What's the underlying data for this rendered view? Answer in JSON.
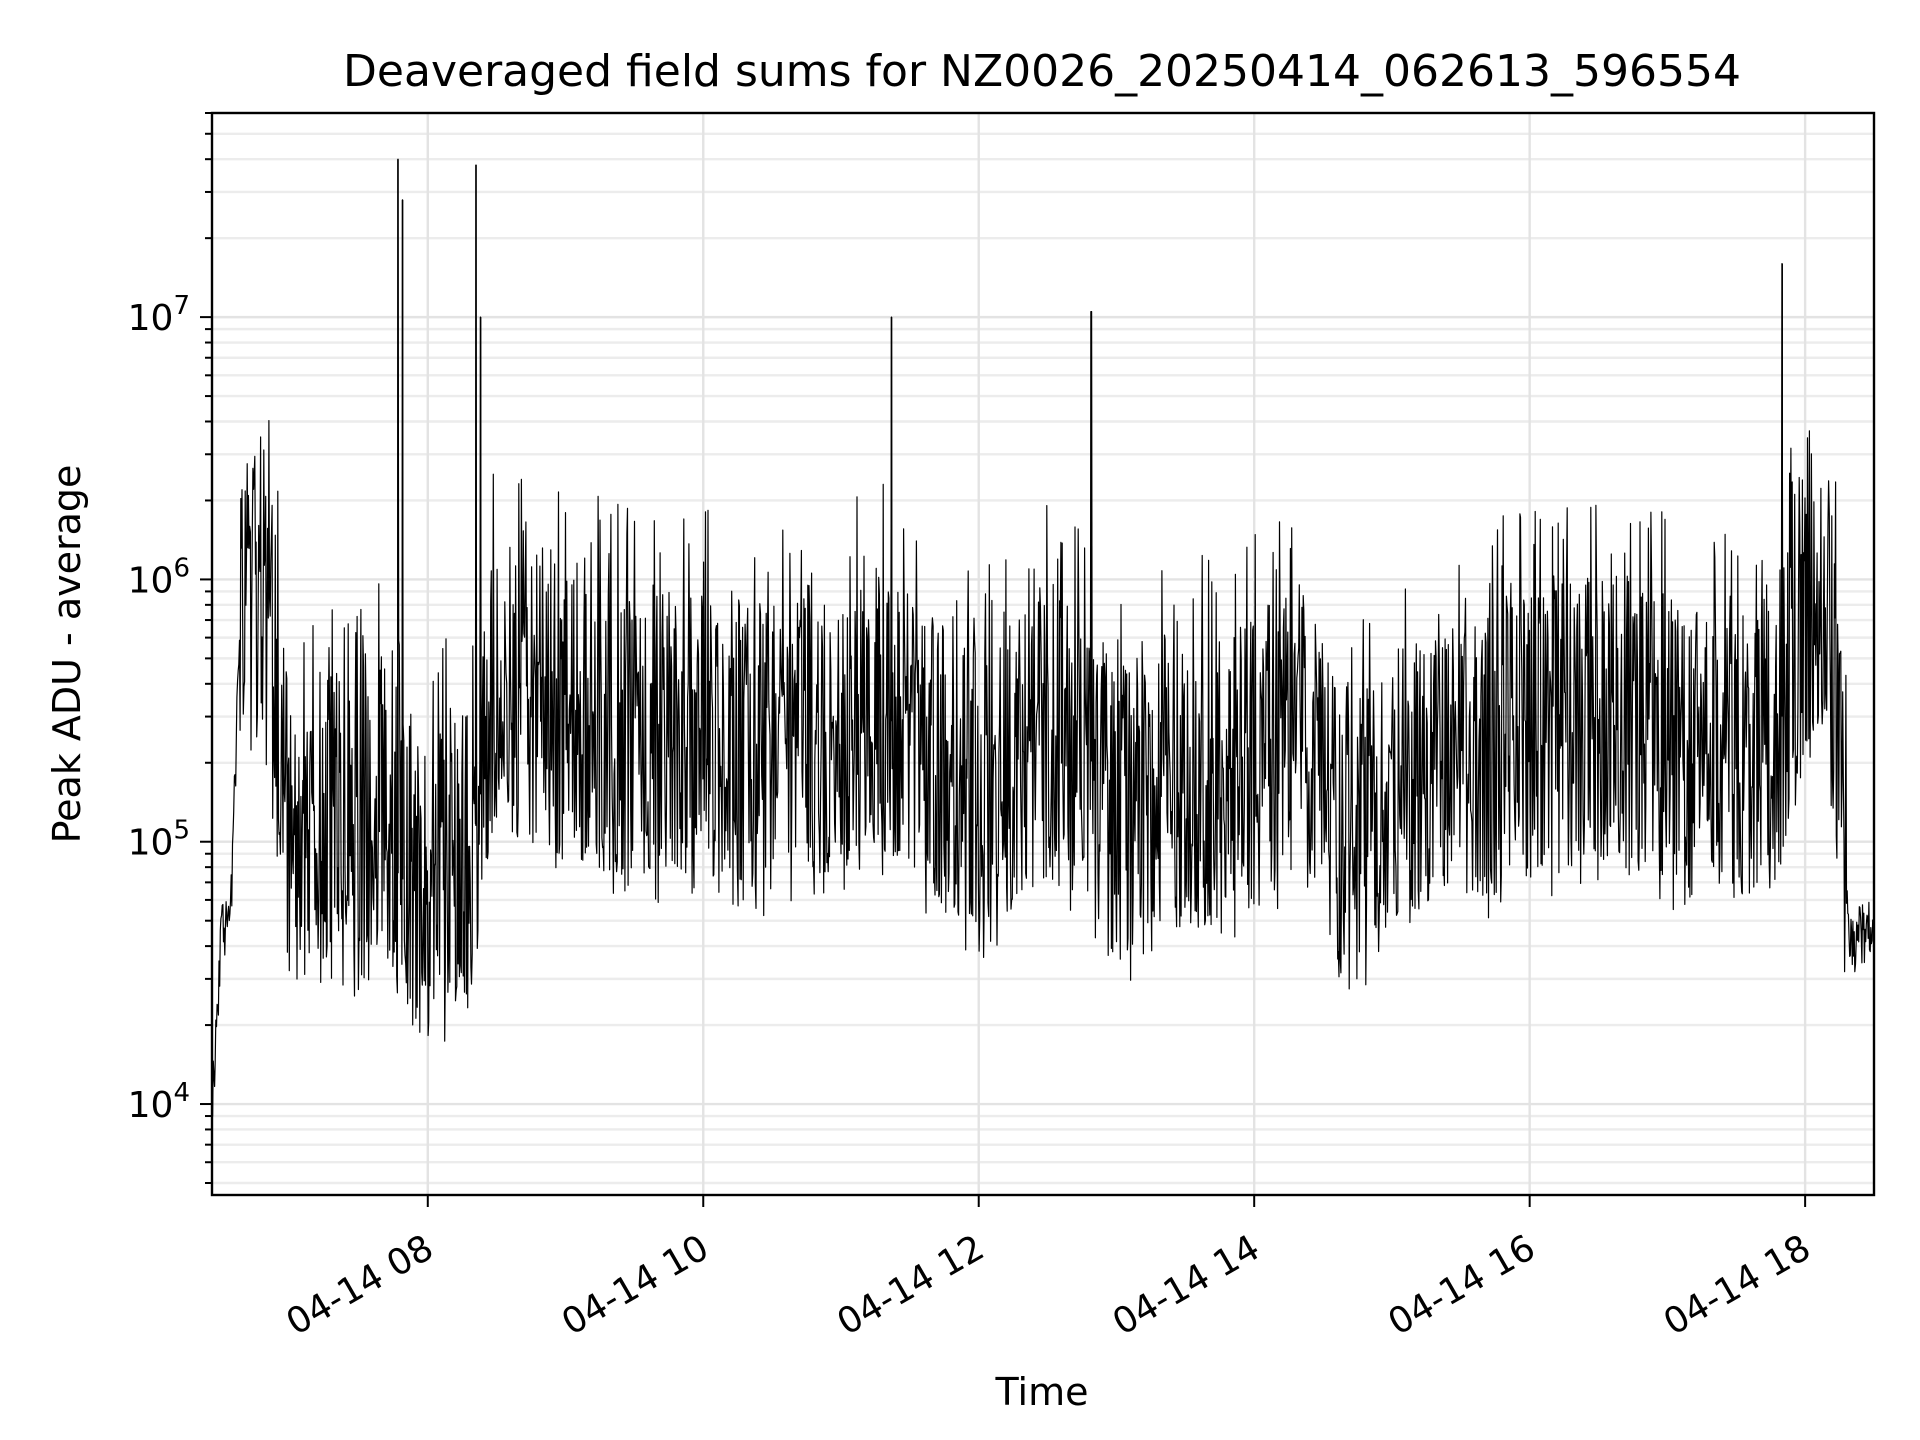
{
  "chart_data": {
    "type": "line",
    "title": "Deaveraged field sums for NZ0026_20250414_062613_596554",
    "xlabel": "Time",
    "ylabel": "Peak ADU - average",
    "y_scale": "log",
    "xlim": [
      "2025-04-14T06:26",
      "2025-04-14T18:30"
    ],
    "ylim": [
      4500,
      60000000
    ],
    "x_tick_labels": [
      "04-14 08",
      "04-14 10",
      "04-14 12",
      "04-14 14",
      "04-14 16",
      "04-14 18"
    ],
    "x_ticks": [
      "2025-04-14T08:00",
      "2025-04-14T10:00",
      "2025-04-14T12:00",
      "2025-04-14T14:00",
      "2025-04-14T16:00",
      "2025-04-14T18:00"
    ],
    "y_ticks": [
      10000,
      100000,
      1000000,
      10000000
    ],
    "y_tick_labels": [
      {
        "base": "10",
        "exp": "4"
      },
      {
        "base": "10",
        "exp": "5"
      },
      {
        "base": "10",
        "exp": "6"
      },
      {
        "base": "10",
        "exp": "7"
      }
    ],
    "grid": "both",
    "line_color": "#000000",
    "series": [
      {
        "x": [
          "2025-04-14T06:26",
          "2025-04-14T06:30",
          "2025-04-14T06:34",
          "2025-04-14T06:38",
          "2025-04-14T06:42",
          "2025-04-14T06:46",
          "2025-04-14T06:50",
          "2025-04-14T06:55",
          "2025-04-14T07:00",
          "2025-04-14T07:05",
          "2025-04-14T07:10",
          "2025-04-14T07:20",
          "2025-04-14T07:30",
          "2025-04-14T07:40",
          "2025-04-14T07:45",
          "2025-04-14T07:50",
          "2025-04-14T08:00",
          "2025-04-14T08:10",
          "2025-04-14T08:20",
          "2025-04-14T08:30",
          "2025-04-14T08:45",
          "2025-04-14T09:00",
          "2025-04-14T09:30",
          "2025-04-14T10:00",
          "2025-04-14T10:30",
          "2025-04-14T11:00",
          "2025-04-14T11:20",
          "2025-04-14T11:40",
          "2025-04-14T12:00",
          "2025-04-14T12:30",
          "2025-04-14T12:50",
          "2025-04-14T13:00",
          "2025-04-14T13:30",
          "2025-04-14T14:00",
          "2025-04-14T14:20",
          "2025-04-14T14:40",
          "2025-04-14T15:00",
          "2025-04-14T15:30",
          "2025-04-14T16:00",
          "2025-04-14T16:30",
          "2025-04-14T17:00",
          "2025-04-14T17:30",
          "2025-04-14T17:50",
          "2025-04-14T18:00",
          "2025-04-14T18:10",
          "2025-04-14T18:20",
          "2025-04-14T18:30"
        ],
        "y": [
          10000,
          45000,
          50000,
          600000,
          1000000,
          800000,
          600000,
          300000,
          100000,
          90000,
          100000,
          120000,
          100000,
          150000,
          80000,
          70000,
          60000,
          80000,
          100000,
          400000,
          350000,
          300000,
          250000,
          260000,
          230000,
          250000,
          300000,
          200000,
          150000,
          250000,
          200000,
          120000,
          150000,
          200000,
          300000,
          90000,
          150000,
          200000,
          250000,
          300000,
          250000,
          200000,
          300000,
          700000,
          900000,
          40000,
          50000
        ]
      }
    ],
    "spikes": [
      {
        "x": "2025-04-14T07:47",
        "y": 40000000
      },
      {
        "x": "2025-04-14T07:49",
        "y": 28000000
      },
      {
        "x": "2025-04-14T08:21",
        "y": 38000000
      },
      {
        "x": "2025-04-14T08:23",
        "y": 10000000
      },
      {
        "x": "2025-04-14T11:22",
        "y": 10000000
      },
      {
        "x": "2025-04-14T12:49",
        "y": 10500000
      },
      {
        "x": "2025-04-14T17:50",
        "y": 16000000
      }
    ]
  }
}
